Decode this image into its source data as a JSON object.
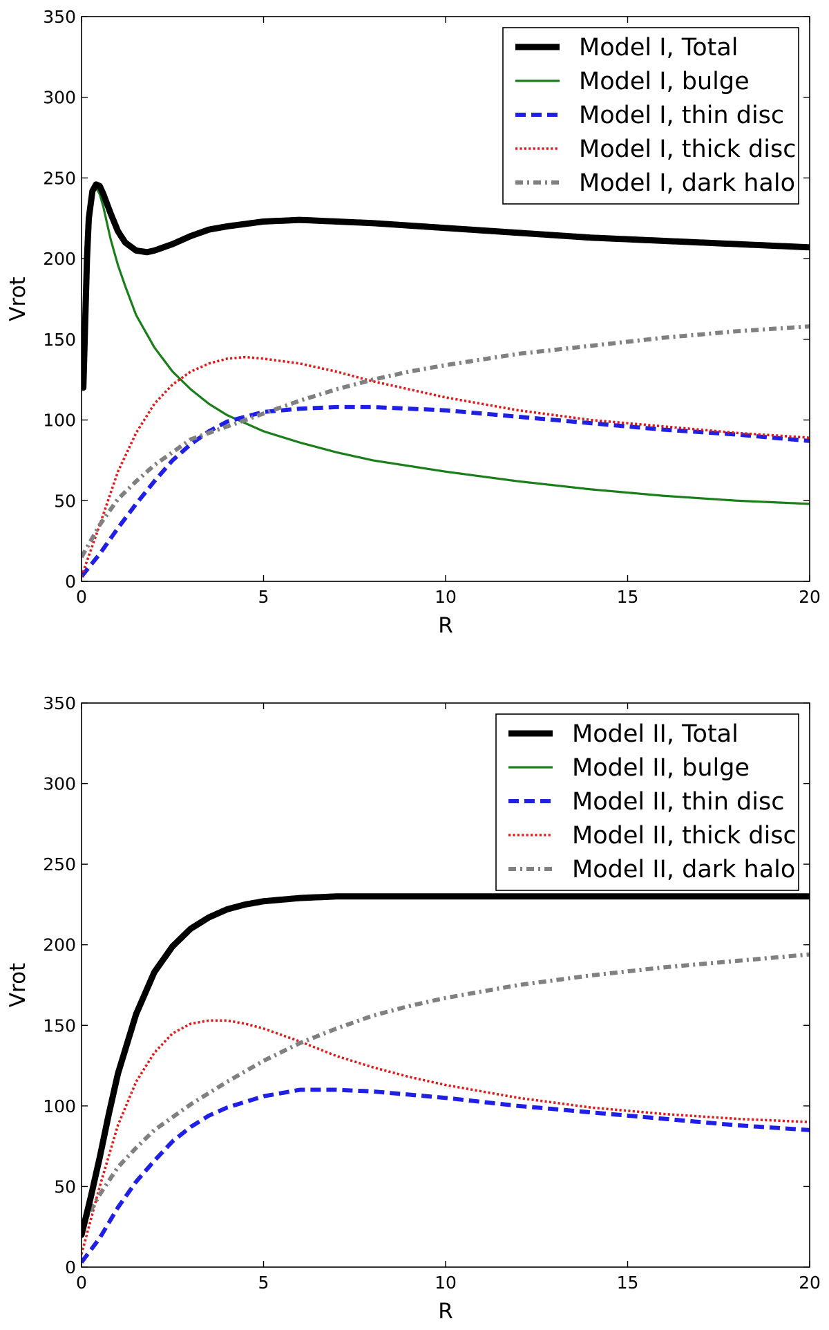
{
  "chart_data": [
    {
      "type": "line",
      "xlabel": "R",
      "ylabel": "Vrot",
      "xlim": [
        0,
        20
      ],
      "ylim": [
        0,
        350
      ],
      "xticks": [
        0,
        5,
        10,
        15,
        20
      ],
      "yticks": [
        0,
        50,
        100,
        150,
        200,
        250,
        300,
        350
      ],
      "grid": false,
      "legend_position": "top-right",
      "series": [
        {
          "name": "Model I, Total",
          "color": "#000000",
          "style": "solid-thick",
          "x": [
            0.05,
            0.1,
            0.15,
            0.2,
            0.3,
            0.4,
            0.5,
            0.6,
            0.8,
            1.0,
            1.2,
            1.5,
            1.8,
            2.0,
            2.5,
            3.0,
            3.5,
            4.0,
            5.0,
            6.0,
            7.0,
            8.0,
            10.0,
            12.0,
            14.0,
            16.0,
            18.0,
            20.0
          ],
          "y": [
            120,
            160,
            200,
            225,
            242,
            246,
            245,
            240,
            228,
            217,
            210,
            205,
            204,
            205,
            209,
            214,
            218,
            220,
            223,
            224,
            223,
            222,
            219,
            216,
            213,
            211,
            209,
            207
          ]
        },
        {
          "name": "Model I, bulge",
          "color": "#1a7f1a",
          "style": "solid",
          "x": [
            0.05,
            0.1,
            0.15,
            0.2,
            0.3,
            0.4,
            0.5,
            0.6,
            0.8,
            1.0,
            1.2,
            1.5,
            2.0,
            2.5,
            3.0,
            3.5,
            4.0,
            5.0,
            6.0,
            7.0,
            8.0,
            10.0,
            12.0,
            14.0,
            16.0,
            18.0,
            20.0
          ],
          "y": [
            120,
            160,
            200,
            225,
            240,
            244,
            240,
            232,
            212,
            196,
            183,
            165,
            145,
            130,
            119,
            110,
            103,
            93,
            86,
            80,
            75,
            68,
            62,
            57,
            53,
            50,
            48
          ]
        },
        {
          "name": "Model I, thin disc",
          "color": "#1f1fe6",
          "style": "dashed",
          "x": [
            0,
            0.5,
            1,
            1.5,
            2,
            2.5,
            3,
            3.5,
            4,
            5,
            6,
            7,
            8,
            9,
            10,
            12,
            14,
            16,
            18,
            20
          ],
          "y": [
            3,
            17,
            33,
            48,
            62,
            75,
            85,
            93,
            99,
            105,
            107,
            108,
            108,
            107,
            106,
            102,
            98,
            94,
            91,
            87
          ]
        },
        {
          "name": "Model I, thick disc",
          "color": "#e31a1c",
          "style": "dotted",
          "x": [
            0,
            0.5,
            1,
            1.5,
            2,
            2.5,
            3,
            3.5,
            4,
            4.5,
            5,
            6,
            7,
            8,
            9,
            10,
            12,
            14,
            16,
            18,
            20
          ],
          "y": [
            3,
            35,
            68,
            92,
            110,
            122,
            130,
            135,
            138,
            139,
            138,
            135,
            130,
            124,
            119,
            114,
            106,
            100,
            96,
            92,
            89
          ]
        },
        {
          "name": "Model I, dark halo",
          "color": "#808080",
          "style": "dashdot",
          "x": [
            0,
            0.5,
            1,
            1.5,
            2,
            3,
            4,
            5,
            6,
            7,
            8,
            9,
            10,
            12,
            14,
            16,
            18,
            20
          ],
          "y": [
            15,
            35,
            51,
            62,
            72,
            88,
            96,
            104,
            112,
            119,
            125,
            130,
            134,
            141,
            146,
            151,
            155,
            158
          ]
        }
      ]
    },
    {
      "type": "line",
      "xlabel": "R",
      "ylabel": "Vrot",
      "xlim": [
        0,
        20
      ],
      "ylim": [
        0,
        350
      ],
      "xticks": [
        0,
        5,
        10,
        15,
        20
      ],
      "yticks": [
        0,
        50,
        100,
        150,
        200,
        250,
        300,
        350
      ],
      "grid": false,
      "legend_position": "top-right",
      "series": [
        {
          "name": "Model II, Total",
          "color": "#000000",
          "style": "solid-thick",
          "x": [
            0,
            0.25,
            0.5,
            0.75,
            1,
            1.5,
            2,
            2.5,
            3,
            3.5,
            4,
            4.5,
            5,
            6,
            7,
            8,
            10,
            12,
            15,
            20
          ],
          "y": [
            20,
            43,
            68,
            95,
            120,
            157,
            183,
            199,
            210,
            217,
            222,
            225,
            227,
            229,
            230,
            230,
            230,
            230,
            230,
            230
          ]
        },
        {
          "name": "Model II, bulge",
          "color": "#1a7f1a",
          "style": "solid",
          "x": [],
          "y": []
        },
        {
          "name": "Model II, thin disc",
          "color": "#1f1fe6",
          "style": "dashed",
          "x": [
            0,
            0.5,
            1,
            1.5,
            2,
            2.5,
            3,
            3.5,
            4,
            5,
            6,
            7,
            8,
            9,
            10,
            12,
            14,
            16,
            18,
            20
          ],
          "y": [
            3,
            18,
            37,
            53,
            66,
            78,
            87,
            94,
            99,
            106,
            110,
            110,
            109,
            107,
            105,
            100,
            96,
            92,
            88,
            85
          ]
        },
        {
          "name": "Model II, thick disc",
          "color": "#e31a1c",
          "style": "dotted",
          "x": [
            0,
            0.5,
            1,
            1.5,
            2,
            2.5,
            3,
            3.5,
            4,
            4.5,
            5,
            6,
            7,
            8,
            9,
            10,
            12,
            14,
            16,
            18,
            20
          ],
          "y": [
            8,
            50,
            88,
            115,
            133,
            145,
            151,
            153,
            153,
            151,
            148,
            140,
            131,
            124,
            118,
            113,
            105,
            99,
            95,
            92,
            90
          ]
        },
        {
          "name": "Model II, dark halo",
          "color": "#808080",
          "style": "dashdot",
          "x": [
            0,
            0.5,
            1,
            1.5,
            2,
            3,
            4,
            5,
            6,
            7,
            8,
            9,
            10,
            12,
            14,
            16,
            18,
            20
          ],
          "y": [
            25,
            45,
            62,
            74,
            85,
            101,
            115,
            128,
            139,
            148,
            156,
            162,
            167,
            175,
            181,
            186,
            190,
            194
          ]
        }
      ]
    }
  ]
}
